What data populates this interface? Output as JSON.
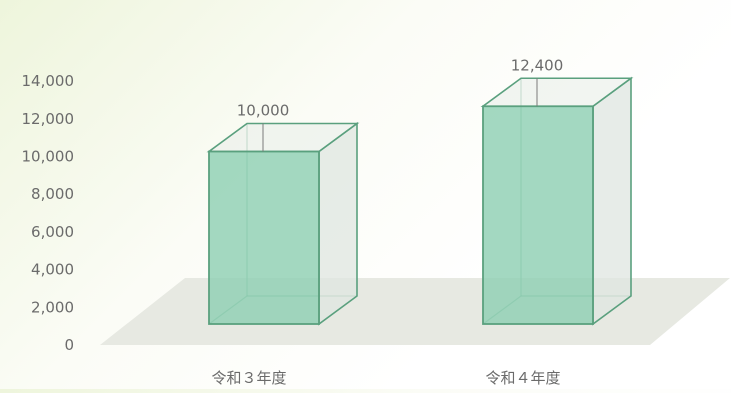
{
  "chart_data": {
    "type": "bar",
    "categories": [
      "令和３年度",
      "令和４年度"
    ],
    "values": [
      10000,
      12400
    ],
    "data_labels": [
      "10,000",
      "12,400"
    ],
    "yticks": [
      0,
      2000,
      4000,
      6000,
      8000,
      10000,
      12000,
      14000
    ],
    "ytick_labels": [
      "0",
      "2,000",
      "4,000",
      "6,000",
      "8,000",
      "10,000",
      "12,000",
      "14,000"
    ],
    "ylim": [
      0,
      14000
    ],
    "title": "",
    "xlabel": "",
    "ylabel": "",
    "grid": false,
    "style": "3d-bar"
  },
  "colors": {
    "bar_front": "#8fcfb3",
    "bar_edge": "#5aa07e",
    "floor": "#e7e9e2",
    "text": "#6b6b6b"
  }
}
